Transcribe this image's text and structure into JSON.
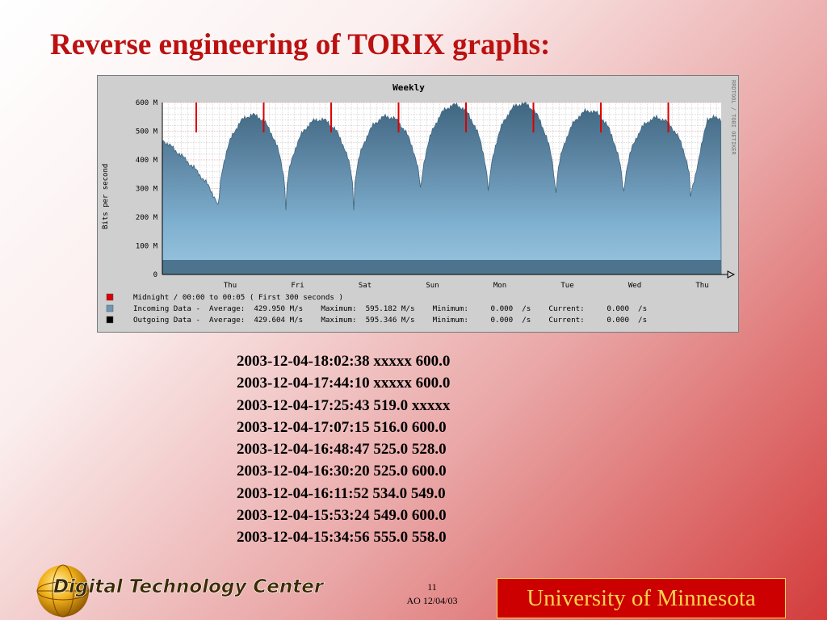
{
  "slide": {
    "title": "Reverse engineering of TORIX graphs:",
    "slide_number": "11",
    "date": "AO 12/04/03",
    "university": "University of Minnesota",
    "logo_text": "Digital Technology Center"
  },
  "graph": {
    "title": "Weekly",
    "side_label": "RRDTOOL / TOBI OETIKER",
    "ylabel": "Bits per second",
    "y_ticks": [
      "0",
      "100 M",
      "200 M",
      "300 M",
      "400 M",
      "500 M",
      "600 M"
    ],
    "x_ticks": [
      "Thu",
      "Fri",
      "Sat",
      "Sun",
      "Mon",
      "Tue",
      "Wed",
      "Thu"
    ],
    "colors": {
      "midnight_marker": "#dd0000",
      "incoming": "#6f96b3",
      "outgoing": "#000000",
      "plot_bg": "#ffffff",
      "grid": "#a9a9a9"
    },
    "legend": [
      {
        "swatch": "#dd0000",
        "text": "Midnight / 00:00 to 00:05 ( First 300 seconds )"
      },
      {
        "swatch": "#6f96b3",
        "text": "Incoming Data -  Average:  429.950 M/s    Maximum:  595.182 M/s    Minimum:     0.000  /s    Current:     0.000  /s"
      },
      {
        "swatch": "#000000",
        "text": "Outgoing Data -  Average:  429.604 M/s    Maximum:  595.346 M/s    Minimum:     0.000  /s    Current:     0.000  /s"
      }
    ]
  },
  "chart_data": {
    "type": "area",
    "title": "Weekly",
    "ylabel": "Bits per second",
    "x_ticks": [
      "Thu",
      "Fri",
      "Sat",
      "Sun",
      "Mon",
      "Tue",
      "Wed",
      "Thu"
    ],
    "ylim": [
      0,
      600000000
    ],
    "y_unit": "bits per second",
    "grid": true,
    "series": [
      {
        "name": "Incoming Data",
        "daily_peaks_M": [
          560,
          555,
          540,
          550,
          590,
          595,
          570,
          545
        ],
        "daily_troughs_M": [
          215,
          225,
          235,
          245,
          235,
          235,
          235,
          270
        ],
        "average_M": 429.95
      }
    ],
    "midnight_markers": 8
  },
  "log": [
    "2003-12-04-18:02:38 xxxxx 600.0",
    "2003-12-04-17:44:10 xxxxx 600.0",
    "2003-12-04-17:25:43 519.0 xxxxx",
    "2003-12-04-17:07:15 516.0 600.0",
    "2003-12-04-16:48:47 525.0 528.0",
    "2003-12-04-16:30:20 525.0 600.0",
    "2003-12-04-16:11:52 534.0 549.0",
    "2003-12-04-15:53:24 549.0 600.0",
    "2003-12-04-15:34:56 555.0 558.0"
  ]
}
